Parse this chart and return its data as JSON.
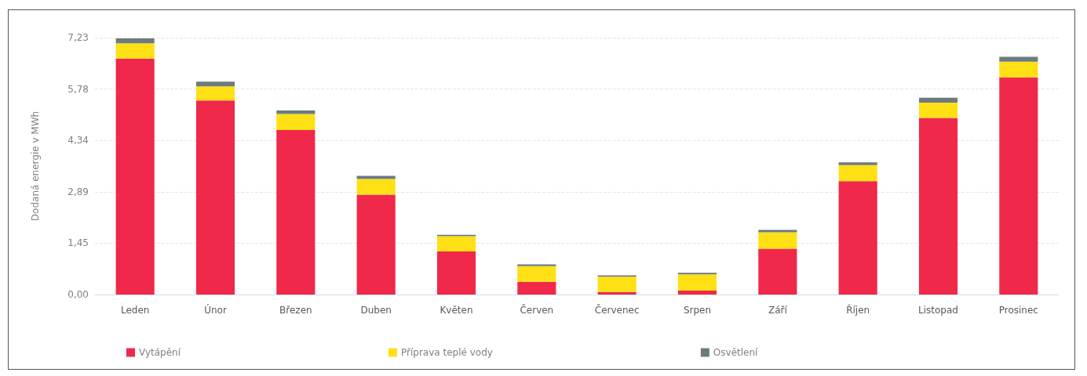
{
  "chart_data": {
    "type": "bar",
    "ylabel": "Dodaná energie v MWh",
    "categories": [
      "Leden",
      "Únor",
      "Březen",
      "Duben",
      "Květen",
      "Červen",
      "Červenec",
      "Srpen",
      "Září",
      "Říjen",
      "Listopad",
      "Prosinec"
    ],
    "stacked": true,
    "series": [
      {
        "name": "Vytápění",
        "color": "#f0284a",
        "values": [
          6.64,
          5.46,
          4.63,
          2.81,
          1.21,
          0.36,
          0.07,
          0.11,
          1.29,
          3.19,
          4.97,
          6.11
        ]
      },
      {
        "name": "Příprava teplé vody",
        "color": "#ffe014",
        "values": [
          0.43,
          0.4,
          0.45,
          0.44,
          0.43,
          0.44,
          0.43,
          0.46,
          0.46,
          0.45,
          0.43,
          0.44
        ]
      },
      {
        "name": "Osvětlení",
        "color": "#6b7b80",
        "values": [
          0.14,
          0.13,
          0.1,
          0.09,
          0.04,
          0.05,
          0.04,
          0.04,
          0.07,
          0.08,
          0.14,
          0.14
        ]
      }
    ],
    "ylim": [
      0,
      7.23
    ],
    "yticks": [
      {
        "value": 0,
        "label": "0,00"
      },
      {
        "value": 1.446,
        "label": "1,45"
      },
      {
        "value": 2.892,
        "label": "2,89"
      },
      {
        "value": 4.338,
        "label": "4,34"
      },
      {
        "value": 5.784,
        "label": "5,78"
      },
      {
        "value": 7.23,
        "label": "7,23"
      }
    ],
    "grid": "y",
    "legend": "bottom"
  }
}
